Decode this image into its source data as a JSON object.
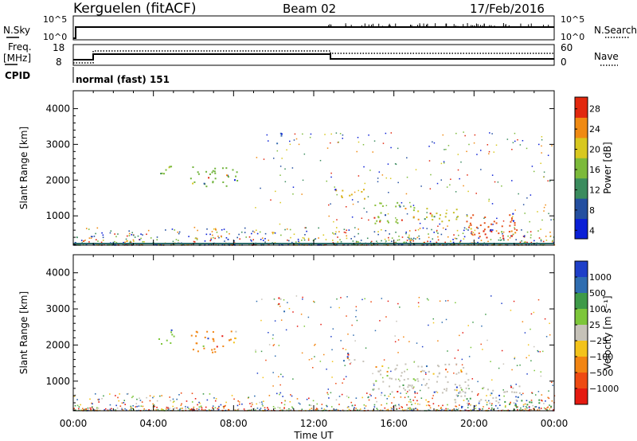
{
  "header": {
    "station": "Kerguelen (fitACF)",
    "beam": "Beam 02",
    "date": "17/Feb/2016"
  },
  "params": {
    "nsky_label": "N.Sky",
    "nsearch_label": "N.Search",
    "nsky_ticks": [
      "10^5",
      "10^0"
    ],
    "nsearch_ticks": [
      "10^5",
      "10^0"
    ],
    "freq_label_1": "Freq.",
    "freq_label_2": "[MHz]",
    "freq_ticks": [
      "18",
      "8"
    ],
    "nave_label": "Nave",
    "nave_ticks": [
      "60",
      "0"
    ],
    "cpid_label": "CPID",
    "cpid_value": "normal (fast) 151"
  },
  "chart_data": [
    {
      "type": "heatmap",
      "name": "power",
      "ylabel": "Slant Range [km]",
      "yticks": [
        "4000",
        "3000",
        "2000",
        "1000"
      ],
      "ylim": [
        180,
        4500
      ],
      "xlim": [
        0,
        24
      ],
      "colorbar_label": "Power [dB]",
      "colorbar_ticks": [
        "28",
        "24",
        "20",
        "16",
        "12",
        "8",
        "4"
      ],
      "colorbar_colors": [
        "#0a1fd6",
        "#244fa0",
        "#3b8c5e",
        "#7cba3a",
        "#d8c81f",
        "#f08a12",
        "#e2280e"
      ],
      "clusters": [
        {
          "t0": 4.2,
          "t1": 5.0,
          "r0": 2050,
          "r1": 2450,
          "color": "#7cba3a"
        },
        {
          "t0": 5.8,
          "t1": 8.2,
          "r0": 1800,
          "r1": 2400,
          "color": "#6fb33a"
        },
        {
          "t0": 10.1,
          "t1": 10.5,
          "r0": 3000,
          "r1": 3450,
          "color": "#3a6fb0"
        },
        {
          "t0": 13.0,
          "t1": 14.6,
          "r0": 1500,
          "r1": 1800,
          "color": "#d9b21c"
        },
        {
          "t0": 14.9,
          "t1": 17.2,
          "r0": 800,
          "r1": 1400,
          "color": "#8cc03a"
        },
        {
          "t0": 17.5,
          "t1": 19.7,
          "r0": 850,
          "r1": 1250,
          "color": "#c7c02a"
        },
        {
          "t0": 19.6,
          "t1": 22.2,
          "r0": 420,
          "r1": 1080,
          "color": "#e5521a"
        },
        {
          "t0": 20.4,
          "t1": 21.9,
          "r0": 380,
          "r1": 650,
          "color": "#e02810"
        }
      ]
    },
    {
      "type": "heatmap",
      "name": "velocity",
      "ylabel": "Slant Range [km]",
      "yticks": [
        "4000",
        "3000",
        "2000",
        "1000"
      ],
      "ylim": [
        180,
        4500
      ],
      "xlim": [
        0,
        24
      ],
      "xticks": [
        "00:00",
        "04:00",
        "08:00",
        "12:00",
        "16:00",
        "20:00",
        "00:00"
      ],
      "xlabel": "Time UT",
      "colorbar_label": "Velocity [m s⁻¹]",
      "colorbar_ticks": [
        "1000",
        "500",
        "100",
        "25",
        "−25",
        "−100",
        "−500",
        "−1000"
      ],
      "colorbar_colors": [
        "#1e3fc8",
        "#2f6db0",
        "#3e9a48",
        "#7dc63a",
        "#c6c2b8",
        "#f3c31b",
        "#f28512",
        "#ee4a12",
        "#e51a10"
      ],
      "clusters": [
        {
          "t0": 4.2,
          "t1": 5.0,
          "r0": 2000,
          "r1": 2450,
          "color": "#7dc63a"
        },
        {
          "t0": 5.8,
          "t1": 8.2,
          "r0": 1800,
          "r1": 2400,
          "color": "#f28512"
        },
        {
          "t0": 10.1,
          "t1": 10.5,
          "r0": 2900,
          "r1": 3400,
          "color": "#e51a10"
        },
        {
          "t0": 13.2,
          "t1": 14.6,
          "r0": 1550,
          "r1": 1800,
          "color": "#c6c2b8"
        },
        {
          "t0": 14.8,
          "t1": 20.0,
          "r0": 700,
          "r1": 1500,
          "color": "#c6c2b8"
        },
        {
          "t0": 19.0,
          "t1": 22.5,
          "r0": 380,
          "r1": 900,
          "color": "#c6c2b8"
        },
        {
          "t0": 21.5,
          "t1": 24.0,
          "r0": 200,
          "r1": 500,
          "color": "#3e9a48"
        }
      ]
    }
  ]
}
